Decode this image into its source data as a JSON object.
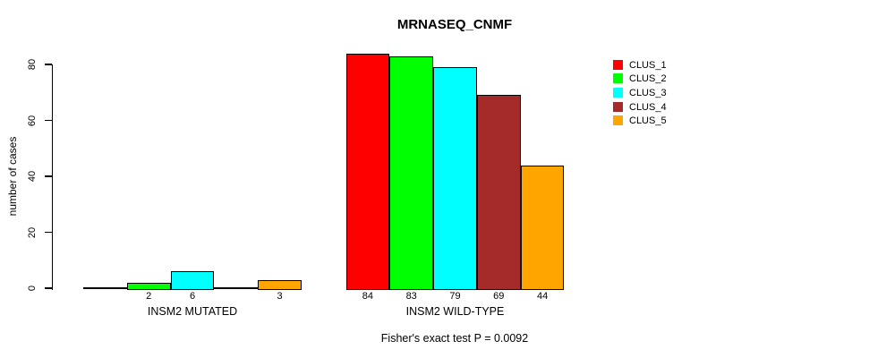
{
  "chart_data": {
    "type": "bar",
    "title": "MRNASEQ_CNMF",
    "ylabel": "number of cases",
    "xlabel": "",
    "ylim": [
      0,
      84
    ],
    "y_ticks": [
      0,
      20,
      40,
      60,
      80
    ],
    "grid": false,
    "legend_position": "top-right",
    "categories": [
      "INSM2 MUTATED",
      "INSM2 WILD-TYPE"
    ],
    "series": [
      {
        "name": "CLUS_1",
        "color": "#FF0000",
        "values": [
          0,
          84
        ]
      },
      {
        "name": "CLUS_2",
        "color": "#00FF00",
        "values": [
          2,
          83
        ]
      },
      {
        "name": "CLUS_3",
        "color": "#00FFFF",
        "values": [
          6,
          79
        ]
      },
      {
        "name": "CLUS_4",
        "color": "#A52A2A",
        "values": [
          0,
          69
        ]
      },
      {
        "name": "CLUS_5",
        "color": "#FFA500",
        "values": [
          3,
          44
        ]
      }
    ],
    "visible_value_labels": [
      "2",
      "6",
      "3",
      "84",
      "83",
      "79",
      "69",
      "44"
    ],
    "annotation": "Fisher's exact test P = 0.0092"
  }
}
